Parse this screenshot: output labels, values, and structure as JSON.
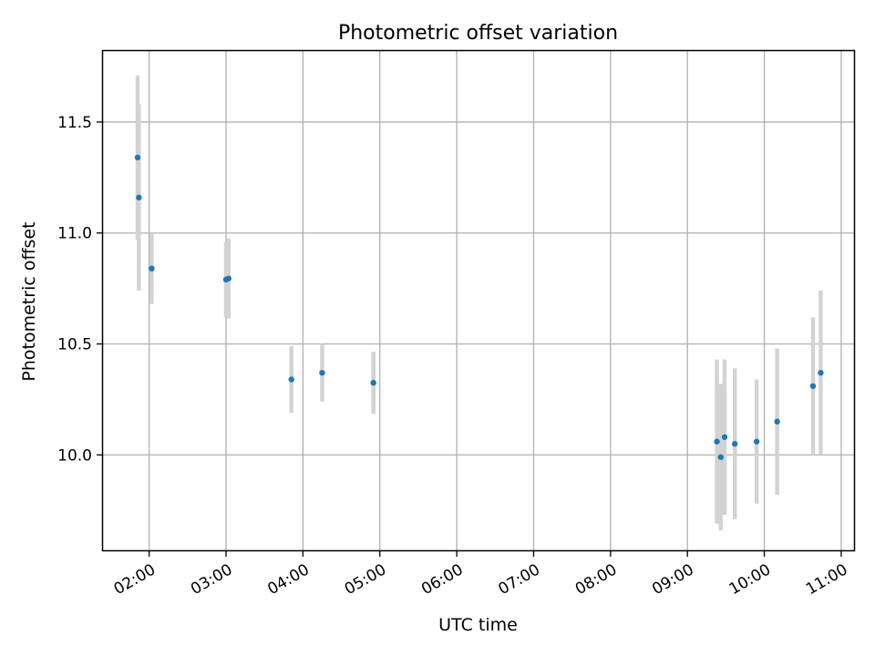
{
  "chart_data": {
    "type": "scatter",
    "title": "Photometric offset variation",
    "xlabel": "UTC time",
    "ylabel": "Photometric offset",
    "x_axis_type": "time",
    "xlim": [
      "01:24",
      "11:10"
    ],
    "ylim": [
      9.57,
      11.82
    ],
    "x_ticks": [
      "02:00",
      "03:00",
      "04:00",
      "05:00",
      "06:00",
      "07:00",
      "08:00",
      "09:00",
      "10:00",
      "11:00"
    ],
    "y_ticks": [
      "10.0",
      "10.5",
      "11.0",
      "11.5"
    ],
    "grid": true,
    "legend": "none",
    "colors": {
      "point": "#1f77b4",
      "errorbar": "#d3d3d3",
      "grid": "#b0b0b0",
      "axis": "#000000"
    },
    "series": [
      {
        "points": [
          {
            "x": "01:51",
            "y": 11.34,
            "err": 0.37
          },
          {
            "x": "01:52",
            "y": 11.16,
            "err": 0.42
          },
          {
            "x": "02:02",
            "y": 10.84,
            "err": 0.16
          },
          {
            "x": "03:00",
            "y": 10.79,
            "err": 0.17
          },
          {
            "x": "03:02",
            "y": 10.795,
            "err": 0.18
          },
          {
            "x": "03:51",
            "y": 10.34,
            "err": 0.15
          },
          {
            "x": "04:15",
            "y": 10.37,
            "err": 0.13
          },
          {
            "x": "04:55",
            "y": 10.325,
            "err": 0.14
          },
          {
            "x": "09:23",
            "y": 10.06,
            "err": 0.37
          },
          {
            "x": "09:26",
            "y": 9.99,
            "err": 0.33
          },
          {
            "x": "09:29",
            "y": 10.08,
            "err": 0.35
          },
          {
            "x": "09:37",
            "y": 10.05,
            "err": 0.34
          },
          {
            "x": "09:54",
            "y": 10.06,
            "err": 0.28
          },
          {
            "x": "10:10",
            "y": 10.15,
            "err": 0.33
          },
          {
            "x": "10:38",
            "y": 10.31,
            "err": 0.31
          },
          {
            "x": "10:44",
            "y": 10.37,
            "err": 0.37
          }
        ]
      }
    ]
  }
}
